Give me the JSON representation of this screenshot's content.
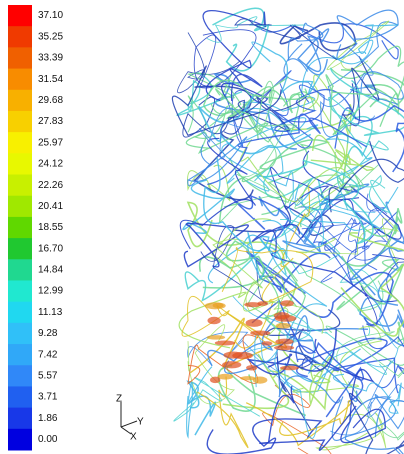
{
  "colorbar": {
    "labels": [
      "37.10",
      "35.25",
      "33.39",
      "31.54",
      "29.68",
      "27.83",
      "25.97",
      "24.12",
      "22.26",
      "20.41",
      "18.55",
      "16.70",
      "14.84",
      "12.99",
      "11.13",
      "9.28",
      "7.42",
      "5.57",
      "3.71",
      "1.86",
      "0.00"
    ]
  },
  "axes_triad": {
    "z": "Z",
    "y": "Y",
    "x": "X"
  }
}
